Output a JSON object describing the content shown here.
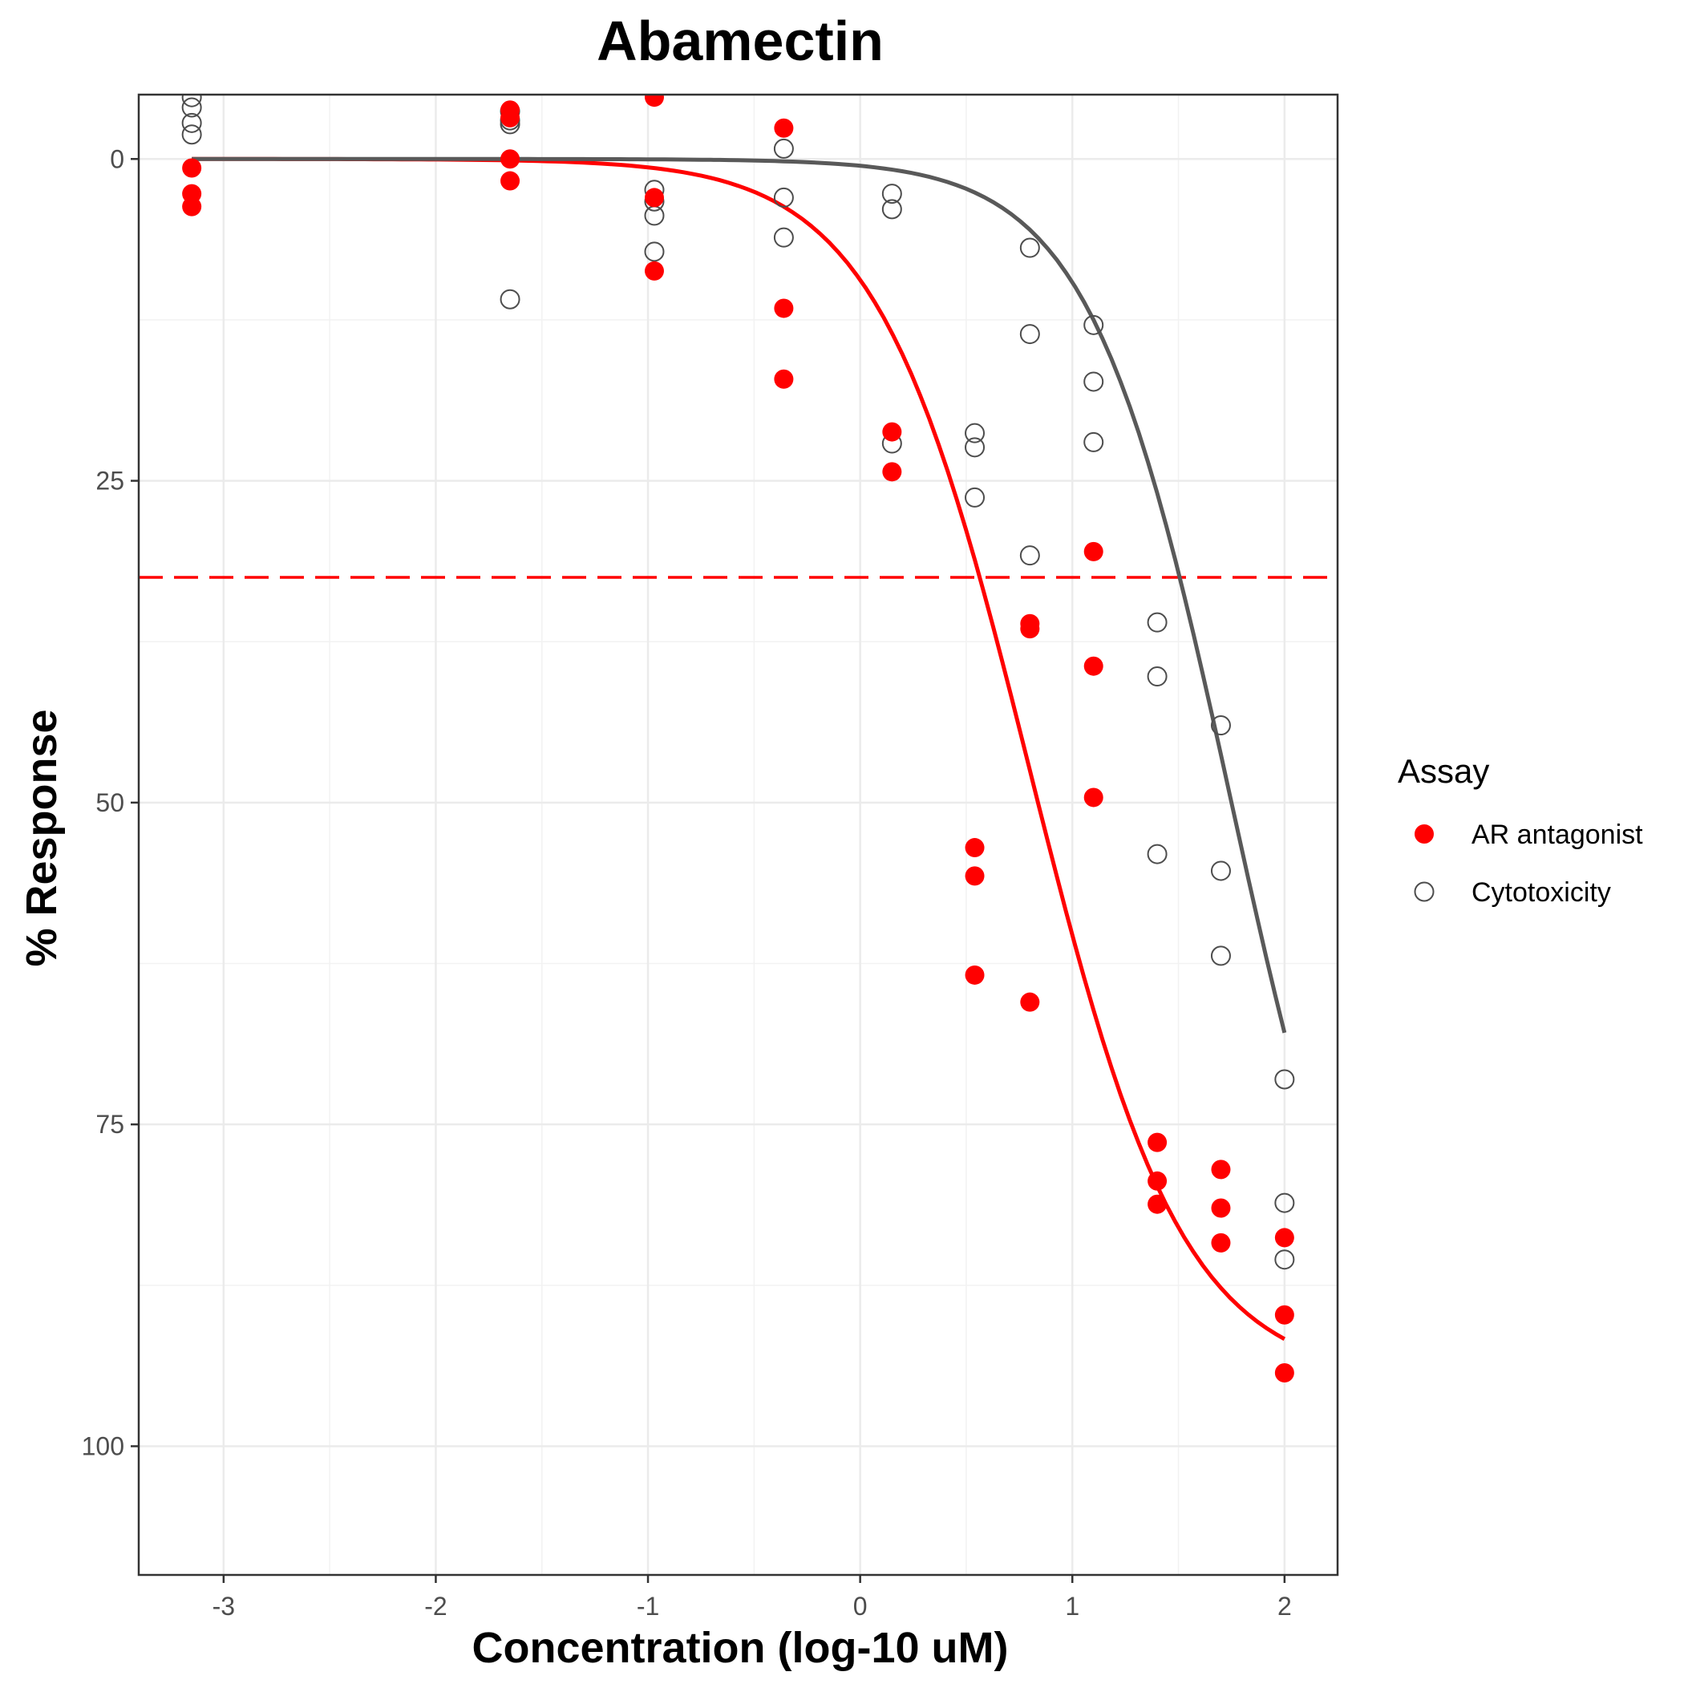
{
  "chart_data": {
    "type": "scatter",
    "title": "Abamectin",
    "xlabel": "Concentration (log-10 uM)",
    "ylabel": "% Response",
    "xlim": [
      -3.4,
      2.25
    ],
    "ylim": [
      110,
      -5
    ],
    "y_reversed": true,
    "x_ticks": [
      -3,
      -2,
      -1,
      0,
      1,
      2
    ],
    "x_tick_labels": [
      "-3",
      "-2",
      "-1",
      "0",
      "1",
      "2"
    ],
    "y_ticks": [
      0,
      25,
      50,
      75,
      100
    ],
    "y_tick_labels": [
      "0",
      "25",
      "50",
      "75",
      "100"
    ],
    "grid": true,
    "legend": {
      "title": "Assay",
      "placement": "right",
      "entries": [
        "AR antagonist",
        "Cytotoxicity"
      ]
    },
    "reference_line": {
      "y": 32.5,
      "color": "#ff0000",
      "style": "dashed"
    },
    "series": [
      {
        "name": "AR antagonist",
        "color": "#ff0000",
        "marker": "filled-circle",
        "points": [
          [
            -3.15,
            2.7
          ],
          [
            -3.15,
            0.7
          ],
          [
            -3.15,
            3.7
          ],
          [
            -1.65,
            1.7
          ],
          [
            -1.65,
            -3.2
          ],
          [
            -1.65,
            0.0
          ],
          [
            -1.65,
            -3.8
          ],
          [
            -0.97,
            -4.8
          ],
          [
            -0.97,
            3.0
          ],
          [
            -0.97,
            8.7
          ],
          [
            -0.36,
            -2.4
          ],
          [
            -0.36,
            11.6
          ],
          [
            -0.36,
            17.1
          ],
          [
            0.15,
            21.2
          ],
          [
            0.15,
            24.3
          ],
          [
            0.54,
            53.5
          ],
          [
            0.54,
            55.7
          ],
          [
            0.54,
            63.4
          ],
          [
            0.8,
            36.1
          ],
          [
            0.8,
            36.5
          ],
          [
            0.8,
            65.5
          ],
          [
            1.1,
            30.5
          ],
          [
            1.1,
            39.4
          ],
          [
            1.1,
            49.6
          ],
          [
            1.4,
            76.4
          ],
          [
            1.4,
            79.4
          ],
          [
            1.4,
            81.2
          ],
          [
            1.7,
            78.5
          ],
          [
            1.7,
            81.5
          ],
          [
            1.7,
            84.2
          ],
          [
            2.0,
            83.8
          ],
          [
            2.0,
            89.8
          ],
          [
            2.0,
            94.3
          ]
        ],
        "curve": {
          "top": 0,
          "bottom": 95,
          "log_ac50": 0.8,
          "hill": 1.2,
          "x_from": -3.15,
          "x_to": 2.0
        }
      },
      {
        "name": "Cytotoxicity",
        "color": "#4d4d4d",
        "marker": "open-circle",
        "points": [
          [
            -3.15,
            -4.8
          ],
          [
            -3.15,
            -4.0
          ],
          [
            -3.15,
            -1.9
          ],
          [
            -3.15,
            -2.8
          ],
          [
            -1.65,
            -3.7
          ],
          [
            -1.65,
            -3.0
          ],
          [
            -1.65,
            -2.7
          ],
          [
            -1.65,
            10.9
          ],
          [
            -0.97,
            2.4
          ],
          [
            -0.97,
            3.3
          ],
          [
            -0.97,
            4.4
          ],
          [
            -0.97,
            7.2
          ],
          [
            -0.36,
            -0.8
          ],
          [
            -0.36,
            3.0
          ],
          [
            -0.36,
            6.1
          ],
          [
            0.15,
            2.7
          ],
          [
            0.15,
            3.9
          ],
          [
            0.15,
            22.1
          ],
          [
            0.54,
            21.3
          ],
          [
            0.54,
            22.4
          ],
          [
            0.54,
            26.3
          ],
          [
            0.8,
            6.9
          ],
          [
            0.8,
            13.6
          ],
          [
            0.8,
            30.8
          ],
          [
            1.1,
            12.9
          ],
          [
            1.1,
            17.3
          ],
          [
            1.1,
            22.0
          ],
          [
            1.4,
            36.0
          ],
          [
            1.4,
            40.2
          ],
          [
            1.4,
            54.0
          ],
          [
            1.7,
            44.0
          ],
          [
            1.7,
            55.3
          ],
          [
            1.7,
            61.9
          ],
          [
            2.0,
            71.5
          ],
          [
            2.0,
            81.1
          ],
          [
            2.0,
            85.5
          ]
        ],
        "curve": {
          "top": 0,
          "bottom": 100,
          "log_ac50": 1.75,
          "hill": 1.3,
          "x_from": -3.15,
          "x_to": 2.0
        }
      }
    ]
  }
}
